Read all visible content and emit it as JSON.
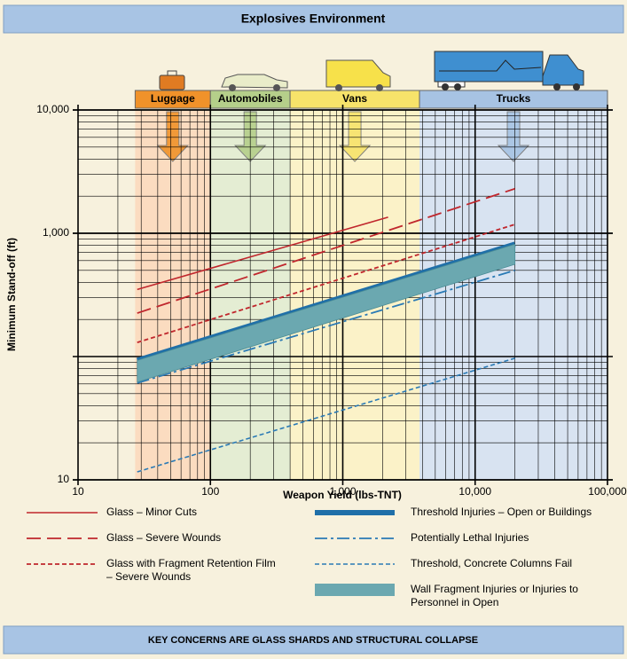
{
  "chart_data": {
    "type": "line",
    "title": "Explosives Environment",
    "footer": "KEY CONCERNS ARE GLASS SHARDS AND STRUCTURAL COLLAPSE",
    "x_label": "Weapon Yield (lbs-TNT)",
    "y_label": "Minimum Stand-off (ft)",
    "log_x": true,
    "log_y": true,
    "grid": true,
    "xlim": [
      10,
      100000
    ],
    "ylim": [
      10,
      10000
    ],
    "xticks": [
      10,
      100,
      {
        "value": 1000,
        "label": "1,000"
      },
      {
        "value": 10000,
        "label": "10,000"
      },
      {
        "value": 100000,
        "label": "100,000"
      }
    ],
    "yticks": [
      10,
      {
        "value": 1000,
        "label": "1,000"
      },
      {
        "value": 10000,
        "label": "10,000"
      }
    ],
    "bands": [
      {
        "label": "Luggage",
        "x": [
          27,
          100
        ],
        "color": "#f0922a",
        "fill": "#fbdcc0"
      },
      {
        "label": "Automobiles",
        "x": [
          100,
          400
        ],
        "color": "#b5cf8a",
        "fill": "#e4edd3"
      },
      {
        "label": "Vans",
        "x": [
          400,
          3800
        ],
        "color": "#f7e36a",
        "fill": "#fbf2c8"
      },
      {
        "label": "Trucks",
        "x": [
          3800,
          100000
        ],
        "color": "#a7c3e3",
        "fill": "#d8e3f1"
      }
    ],
    "series": [
      {
        "name": "Glass – Minor Cuts",
        "color": "#c0272d",
        "style": "solid",
        "width": 1.6,
        "x": [
          28,
          2200
        ],
        "values": [
          350,
          1350
        ]
      },
      {
        "name": "Glass – Severe Wounds",
        "color": "#c0272d",
        "style": "dash",
        "width": 1.8,
        "x": [
          28,
          20000
        ],
        "values": [
          225,
          2300
        ]
      },
      {
        "name": "Glass with Fragment Retention Film – Severe Wounds",
        "color": "#c0272d",
        "style": "dot",
        "width": 1.8,
        "x": [
          28,
          20000
        ],
        "values": [
          130,
          1180
        ]
      },
      {
        "name": "Threshold Injuries – Open or Buildings",
        "color": "#1f6fa8",
        "style": "solid",
        "width": 6,
        "x": [
          28,
          20000
        ],
        "values": [
          93,
          815
        ]
      },
      {
        "name": "Potentially Lethal Injuries",
        "color": "#2a7ab5",
        "style": "dashdot",
        "width": 1.8,
        "x": [
          28,
          20000
        ],
        "values": [
          61,
          500
        ]
      },
      {
        "name": "Threshold, Concrete Columns Fail",
        "color": "#2a7ab5",
        "style": "dot",
        "width": 1.6,
        "x": [
          28,
          20000
        ],
        "values": [
          11.6,
          97
        ]
      },
      {
        "name": "Wall Fragment Injuries or Injuries to Personnel in Open",
        "color": "#6ba8b0",
        "style": "band",
        "x": [
          28,
          20000
        ],
        "low": [
          62,
          560
        ],
        "high": [
          93,
          815
        ]
      }
    ]
  }
}
